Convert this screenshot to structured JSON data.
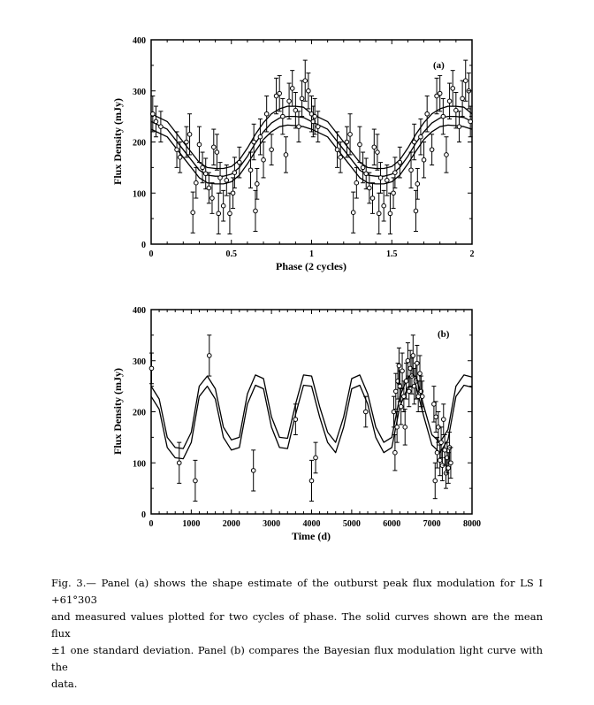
{
  "chart_data": [
    {
      "type": "line",
      "panel": "(a)",
      "xlabel": "Phase  (2 cycles)",
      "ylabel": "Flux Density  (mJy)",
      "xlim": [
        0,
        2
      ],
      "ylim": [
        0,
        400
      ],
      "xticks": [
        "0",
        "0.5",
        "1",
        "1.5",
        "2"
      ],
      "yticks": [
        "0",
        "100",
        "200",
        "300",
        "400"
      ],
      "series": [
        {
          "x": [
            0,
            0.1,
            0.2,
            0.3,
            0.35,
            0.4,
            0.45,
            0.5,
            0.55,
            0.6,
            0.65,
            0.7,
            0.75,
            0.8,
            0.85,
            0.9,
            0.95,
            1.0,
            1.1,
            1.2,
            1.3,
            1.35,
            1.4,
            1.45,
            1.5,
            1.55,
            1.6,
            1.65,
            1.7,
            1.75,
            1.8,
            1.85,
            1.9,
            1.95,
            2.0
          ],
          "y": [
            255,
            240,
            200,
            160,
            150,
            148,
            148,
            152,
            165,
            188,
            215,
            238,
            255,
            265,
            270,
            270,
            268,
            255,
            240,
            200,
            160,
            150,
            148,
            148,
            152,
            165,
            188,
            215,
            238,
            255,
            265,
            270,
            270,
            268,
            255
          ]
        },
        {
          "x": [
            0,
            0.1,
            0.2,
            0.3,
            0.35,
            0.4,
            0.45,
            0.5,
            0.55,
            0.6,
            0.65,
            0.7,
            0.75,
            0.8,
            0.85,
            0.9,
            0.95,
            1.0,
            1.1,
            1.2,
            1.3,
            1.35,
            1.4,
            1.45,
            1.5,
            1.55,
            1.6,
            1.65,
            1.7,
            1.75,
            1.8,
            1.85,
            1.9,
            1.95,
            2.0
          ],
          "y": [
            240,
            225,
            185,
            145,
            135,
            133,
            133,
            137,
            150,
            172,
            198,
            220,
            237,
            247,
            250,
            250,
            248,
            240,
            225,
            185,
            145,
            135,
            133,
            133,
            137,
            150,
            172,
            198,
            220,
            237,
            247,
            250,
            250,
            248,
            240
          ]
        },
        {
          "x": [
            0,
            0.1,
            0.2,
            0.3,
            0.35,
            0.4,
            0.45,
            0.5,
            0.55,
            0.6,
            0.65,
            0.7,
            0.75,
            0.8,
            0.85,
            0.9,
            0.95,
            1.0,
            1.1,
            1.2,
            1.3,
            1.35,
            1.4,
            1.45,
            1.5,
            1.55,
            1.6,
            1.65,
            1.7,
            1.75,
            1.8,
            1.85,
            1.9,
            1.95,
            2.0
          ],
          "y": [
            225,
            210,
            170,
            130,
            120,
            118,
            118,
            122,
            135,
            157,
            182,
            205,
            220,
            230,
            233,
            232,
            230,
            225,
            210,
            170,
            130,
            120,
            118,
            118,
            122,
            135,
            157,
            182,
            205,
            220,
            230,
            233,
            232,
            230,
            225
          ]
        }
      ],
      "points": [
        {
          "x": 0.01,
          "y": 255,
          "e": 35
        },
        {
          "x": 0.03,
          "y": 240,
          "e": 30
        },
        {
          "x": 0.06,
          "y": 230,
          "e": 30
        },
        {
          "x": 0.16,
          "y": 185,
          "e": 35
        },
        {
          "x": 0.18,
          "y": 170,
          "e": 30
        },
        {
          "x": 0.22,
          "y": 200,
          "e": 30
        },
        {
          "x": 0.24,
          "y": 215,
          "e": 40
        },
        {
          "x": 0.26,
          "y": 62,
          "e": 40
        },
        {
          "x": 0.28,
          "y": 120,
          "e": 30
        },
        {
          "x": 0.3,
          "y": 195,
          "e": 35
        },
        {
          "x": 0.32,
          "y": 150,
          "e": 30
        },
        {
          "x": 0.34,
          "y": 138,
          "e": 30
        },
        {
          "x": 0.36,
          "y": 110,
          "e": 30
        },
        {
          "x": 0.38,
          "y": 90,
          "e": 30
        },
        {
          "x": 0.39,
          "y": 190,
          "e": 35
        },
        {
          "x": 0.41,
          "y": 180,
          "e": 35
        },
        {
          "x": 0.42,
          "y": 60,
          "e": 40
        },
        {
          "x": 0.43,
          "y": 130,
          "e": 30
        },
        {
          "x": 0.45,
          "y": 75,
          "e": 30
        },
        {
          "x": 0.47,
          "y": 125,
          "e": 30
        },
        {
          "x": 0.49,
          "y": 60,
          "e": 40
        },
        {
          "x": 0.51,
          "y": 100,
          "e": 30
        },
        {
          "x": 0.52,
          "y": 140,
          "e": 30
        },
        {
          "x": 0.55,
          "y": 160,
          "e": 30
        },
        {
          "x": 0.62,
          "y": 145,
          "e": 35
        },
        {
          "x": 0.64,
          "y": 200,
          "e": 35
        },
        {
          "x": 0.65,
          "y": 65,
          "e": 40
        },
        {
          "x": 0.66,
          "y": 118,
          "e": 30
        },
        {
          "x": 0.68,
          "y": 210,
          "e": 35
        },
        {
          "x": 0.7,
          "y": 165,
          "e": 35
        },
        {
          "x": 0.72,
          "y": 255,
          "e": 35
        },
        {
          "x": 0.75,
          "y": 185,
          "e": 30
        },
        {
          "x": 0.78,
          "y": 290,
          "e": 35
        },
        {
          "x": 0.8,
          "y": 295,
          "e": 35
        },
        {
          "x": 0.82,
          "y": 250,
          "e": 35
        },
        {
          "x": 0.84,
          "y": 175,
          "e": 35
        },
        {
          "x": 0.86,
          "y": 280,
          "e": 35
        },
        {
          "x": 0.88,
          "y": 305,
          "e": 35
        },
        {
          "x": 0.9,
          "y": 262,
          "e": 35
        },
        {
          "x": 0.92,
          "y": 230,
          "e": 30
        },
        {
          "x": 0.94,
          "y": 285,
          "e": 35
        },
        {
          "x": 0.96,
          "y": 320,
          "e": 40
        },
        {
          "x": 0.98,
          "y": 300,
          "e": 35
        },
        {
          "x": 1.0,
          "y": 255,
          "e": 35
        },
        {
          "x": 1.01,
          "y": 240,
          "e": 30
        },
        {
          "x": 1.02,
          "y": 250,
          "e": 35
        },
        {
          "x": 1.04,
          "y": 230,
          "e": 30
        },
        {
          "x": 1.16,
          "y": 185,
          "e": 35
        },
        {
          "x": 1.18,
          "y": 170,
          "e": 30
        },
        {
          "x": 1.22,
          "y": 200,
          "e": 30
        },
        {
          "x": 1.24,
          "y": 215,
          "e": 40
        },
        {
          "x": 1.26,
          "y": 62,
          "e": 40
        },
        {
          "x": 1.28,
          "y": 120,
          "e": 30
        },
        {
          "x": 1.3,
          "y": 195,
          "e": 35
        },
        {
          "x": 1.32,
          "y": 150,
          "e": 30
        },
        {
          "x": 1.34,
          "y": 138,
          "e": 30
        },
        {
          "x": 1.36,
          "y": 110,
          "e": 30
        },
        {
          "x": 1.38,
          "y": 90,
          "e": 30
        },
        {
          "x": 1.39,
          "y": 190,
          "e": 35
        },
        {
          "x": 1.41,
          "y": 180,
          "e": 35
        },
        {
          "x": 1.42,
          "y": 60,
          "e": 40
        },
        {
          "x": 1.43,
          "y": 130,
          "e": 30
        },
        {
          "x": 1.45,
          "y": 75,
          "e": 30
        },
        {
          "x": 1.47,
          "y": 125,
          "e": 30
        },
        {
          "x": 1.49,
          "y": 60,
          "e": 40
        },
        {
          "x": 1.51,
          "y": 100,
          "e": 30
        },
        {
          "x": 1.52,
          "y": 140,
          "e": 30
        },
        {
          "x": 1.55,
          "y": 160,
          "e": 30
        },
        {
          "x": 1.62,
          "y": 145,
          "e": 35
        },
        {
          "x": 1.64,
          "y": 200,
          "e": 35
        },
        {
          "x": 1.65,
          "y": 65,
          "e": 40
        },
        {
          "x": 1.66,
          "y": 118,
          "e": 30
        },
        {
          "x": 1.68,
          "y": 210,
          "e": 35
        },
        {
          "x": 1.7,
          "y": 165,
          "e": 35
        },
        {
          "x": 1.72,
          "y": 255,
          "e": 35
        },
        {
          "x": 1.75,
          "y": 185,
          "e": 30
        },
        {
          "x": 1.78,
          "y": 290,
          "e": 35
        },
        {
          "x": 1.8,
          "y": 295,
          "e": 35
        },
        {
          "x": 1.82,
          "y": 250,
          "e": 35
        },
        {
          "x": 1.84,
          "y": 175,
          "e": 35
        },
        {
          "x": 1.86,
          "y": 280,
          "e": 35
        },
        {
          "x": 1.88,
          "y": 305,
          "e": 35
        },
        {
          "x": 1.9,
          "y": 262,
          "e": 35
        },
        {
          "x": 1.92,
          "y": 230,
          "e": 30
        },
        {
          "x": 1.94,
          "y": 285,
          "e": 35
        },
        {
          "x": 1.96,
          "y": 320,
          "e": 40
        },
        {
          "x": 1.98,
          "y": 300,
          "e": 35
        },
        {
          "x": 1.99,
          "y": 240,
          "e": 30
        }
      ]
    },
    {
      "type": "line",
      "panel": "(b)",
      "xlabel": "Time  (d)",
      "ylabel": "Flux Density  (mJy)",
      "xlim": [
        0,
        8000
      ],
      "ylim": [
        0,
        400
      ],
      "xticks": [
        "0",
        "1000",
        "2000",
        "3000",
        "4000",
        "5000",
        "6000",
        "7000",
        "8000"
      ],
      "yticks": [
        "0",
        "100",
        "200",
        "300",
        "400"
      ],
      "series": [
        {
          "x": [
            0,
            200,
            400,
            600,
            800,
            1000,
            1200,
            1400,
            1600,
            1800,
            2000,
            2200,
            2400,
            2600,
            2800,
            3000,
            3200,
            3400,
            3600,
            3800,
            4000,
            4200,
            4400,
            4600,
            4800,
            5000,
            5200,
            5400,
            5600,
            5800,
            6000,
            6200,
            6400,
            6600,
            6800,
            7000,
            7200,
            7400,
            7600,
            7800,
            8000
          ],
          "y": [
            250,
            225,
            150,
            130,
            128,
            160,
            250,
            270,
            245,
            170,
            145,
            150,
            235,
            272,
            265,
            190,
            150,
            148,
            215,
            272,
            270,
            210,
            160,
            140,
            190,
            265,
            272,
            235,
            170,
            140,
            150,
            230,
            268,
            270,
            210,
            155,
            140,
            165,
            250,
            272,
            268
          ]
        },
        {
          "x": [
            0,
            200,
            400,
            600,
            800,
            1000,
            1200,
            1400,
            1600,
            1800,
            2000,
            2200,
            2400,
            2600,
            2800,
            3000,
            3200,
            3400,
            3600,
            3800,
            4000,
            4200,
            4400,
            4600,
            4800,
            5000,
            5200,
            5400,
            5600,
            5800,
            6000,
            6200,
            6400,
            6600,
            6800,
            7000,
            7200,
            7400,
            7600,
            7800,
            8000
          ],
          "y": [
            230,
            205,
            130,
            110,
            108,
            140,
            230,
            250,
            225,
            150,
            125,
            130,
            215,
            252,
            245,
            170,
            130,
            128,
            195,
            252,
            250,
            190,
            140,
            120,
            170,
            245,
            252,
            215,
            150,
            120,
            130,
            210,
            248,
            250,
            190,
            135,
            120,
            145,
            230,
            252,
            248
          ]
        }
      ],
      "points": [
        {
          "x": 10,
          "y": 285,
          "e": 30
        },
        {
          "x": 700,
          "y": 100,
          "e": 40
        },
        {
          "x": 1100,
          "y": 65,
          "e": 40
        },
        {
          "x": 1450,
          "y": 310,
          "e": 40
        },
        {
          "x": 2550,
          "y": 85,
          "e": 40
        },
        {
          "x": 3600,
          "y": 185,
          "e": 30
        },
        {
          "x": 4000,
          "y": 65,
          "e": 40
        },
        {
          "x": 4100,
          "y": 110,
          "e": 30
        },
        {
          "x": 5350,
          "y": 200,
          "e": 30
        },
        {
          "x": 6050,
          "y": 200,
          "e": 30
        },
        {
          "x": 6080,
          "y": 120,
          "e": 35
        },
        {
          "x": 6100,
          "y": 240,
          "e": 35
        },
        {
          "x": 6130,
          "y": 170,
          "e": 30
        },
        {
          "x": 6150,
          "y": 260,
          "e": 35
        },
        {
          "x": 6180,
          "y": 290,
          "e": 35
        },
        {
          "x": 6200,
          "y": 250,
          "e": 30
        },
        {
          "x": 6230,
          "y": 210,
          "e": 35
        },
        {
          "x": 6260,
          "y": 280,
          "e": 35
        },
        {
          "x": 6300,
          "y": 230,
          "e": 30
        },
        {
          "x": 6330,
          "y": 170,
          "e": 35
        },
        {
          "x": 6360,
          "y": 260,
          "e": 35
        },
        {
          "x": 6400,
          "y": 300,
          "e": 35
        },
        {
          "x": 6430,
          "y": 240,
          "e": 30
        },
        {
          "x": 6460,
          "y": 285,
          "e": 35
        },
        {
          "x": 6500,
          "y": 270,
          "e": 35
        },
        {
          "x": 6530,
          "y": 310,
          "e": 40
        },
        {
          "x": 6560,
          "y": 250,
          "e": 35
        },
        {
          "x": 6600,
          "y": 260,
          "e": 35
        },
        {
          "x": 6630,
          "y": 295,
          "e": 35
        },
        {
          "x": 6660,
          "y": 230,
          "e": 30
        },
        {
          "x": 6700,
          "y": 275,
          "e": 35
        },
        {
          "x": 6730,
          "y": 240,
          "e": 30
        },
        {
          "x": 6760,
          "y": 230,
          "e": 30
        },
        {
          "x": 7050,
          "y": 215,
          "e": 35
        },
        {
          "x": 7080,
          "y": 65,
          "e": 35
        },
        {
          "x": 7100,
          "y": 190,
          "e": 30
        },
        {
          "x": 7130,
          "y": 120,
          "e": 30
        },
        {
          "x": 7160,
          "y": 170,
          "e": 30
        },
        {
          "x": 7200,
          "y": 105,
          "e": 30
        },
        {
          "x": 7230,
          "y": 140,
          "e": 30
        },
        {
          "x": 7260,
          "y": 95,
          "e": 30
        },
        {
          "x": 7290,
          "y": 185,
          "e": 30
        },
        {
          "x": 7320,
          "y": 125,
          "e": 30
        },
        {
          "x": 7350,
          "y": 80,
          "e": 30
        },
        {
          "x": 7380,
          "y": 110,
          "e": 30
        },
        {
          "x": 7410,
          "y": 90,
          "e": 30
        },
        {
          "x": 7440,
          "y": 130,
          "e": 30
        },
        {
          "x": 7470,
          "y": 100,
          "e": 30
        }
      ]
    }
  ],
  "caption": {
    "line1": "Fig. 3.— Panel (a) shows the shape estimate of the outburst peak flux modulation for LS I +61°303",
    "line2": "and measured values plotted for two cycles of phase.  The solid curves shown are the mean flux",
    "line3": "±1 one standard deviation.  Panel (b) compares the Bayesian flux modulation light curve with the",
    "line4": "data."
  }
}
